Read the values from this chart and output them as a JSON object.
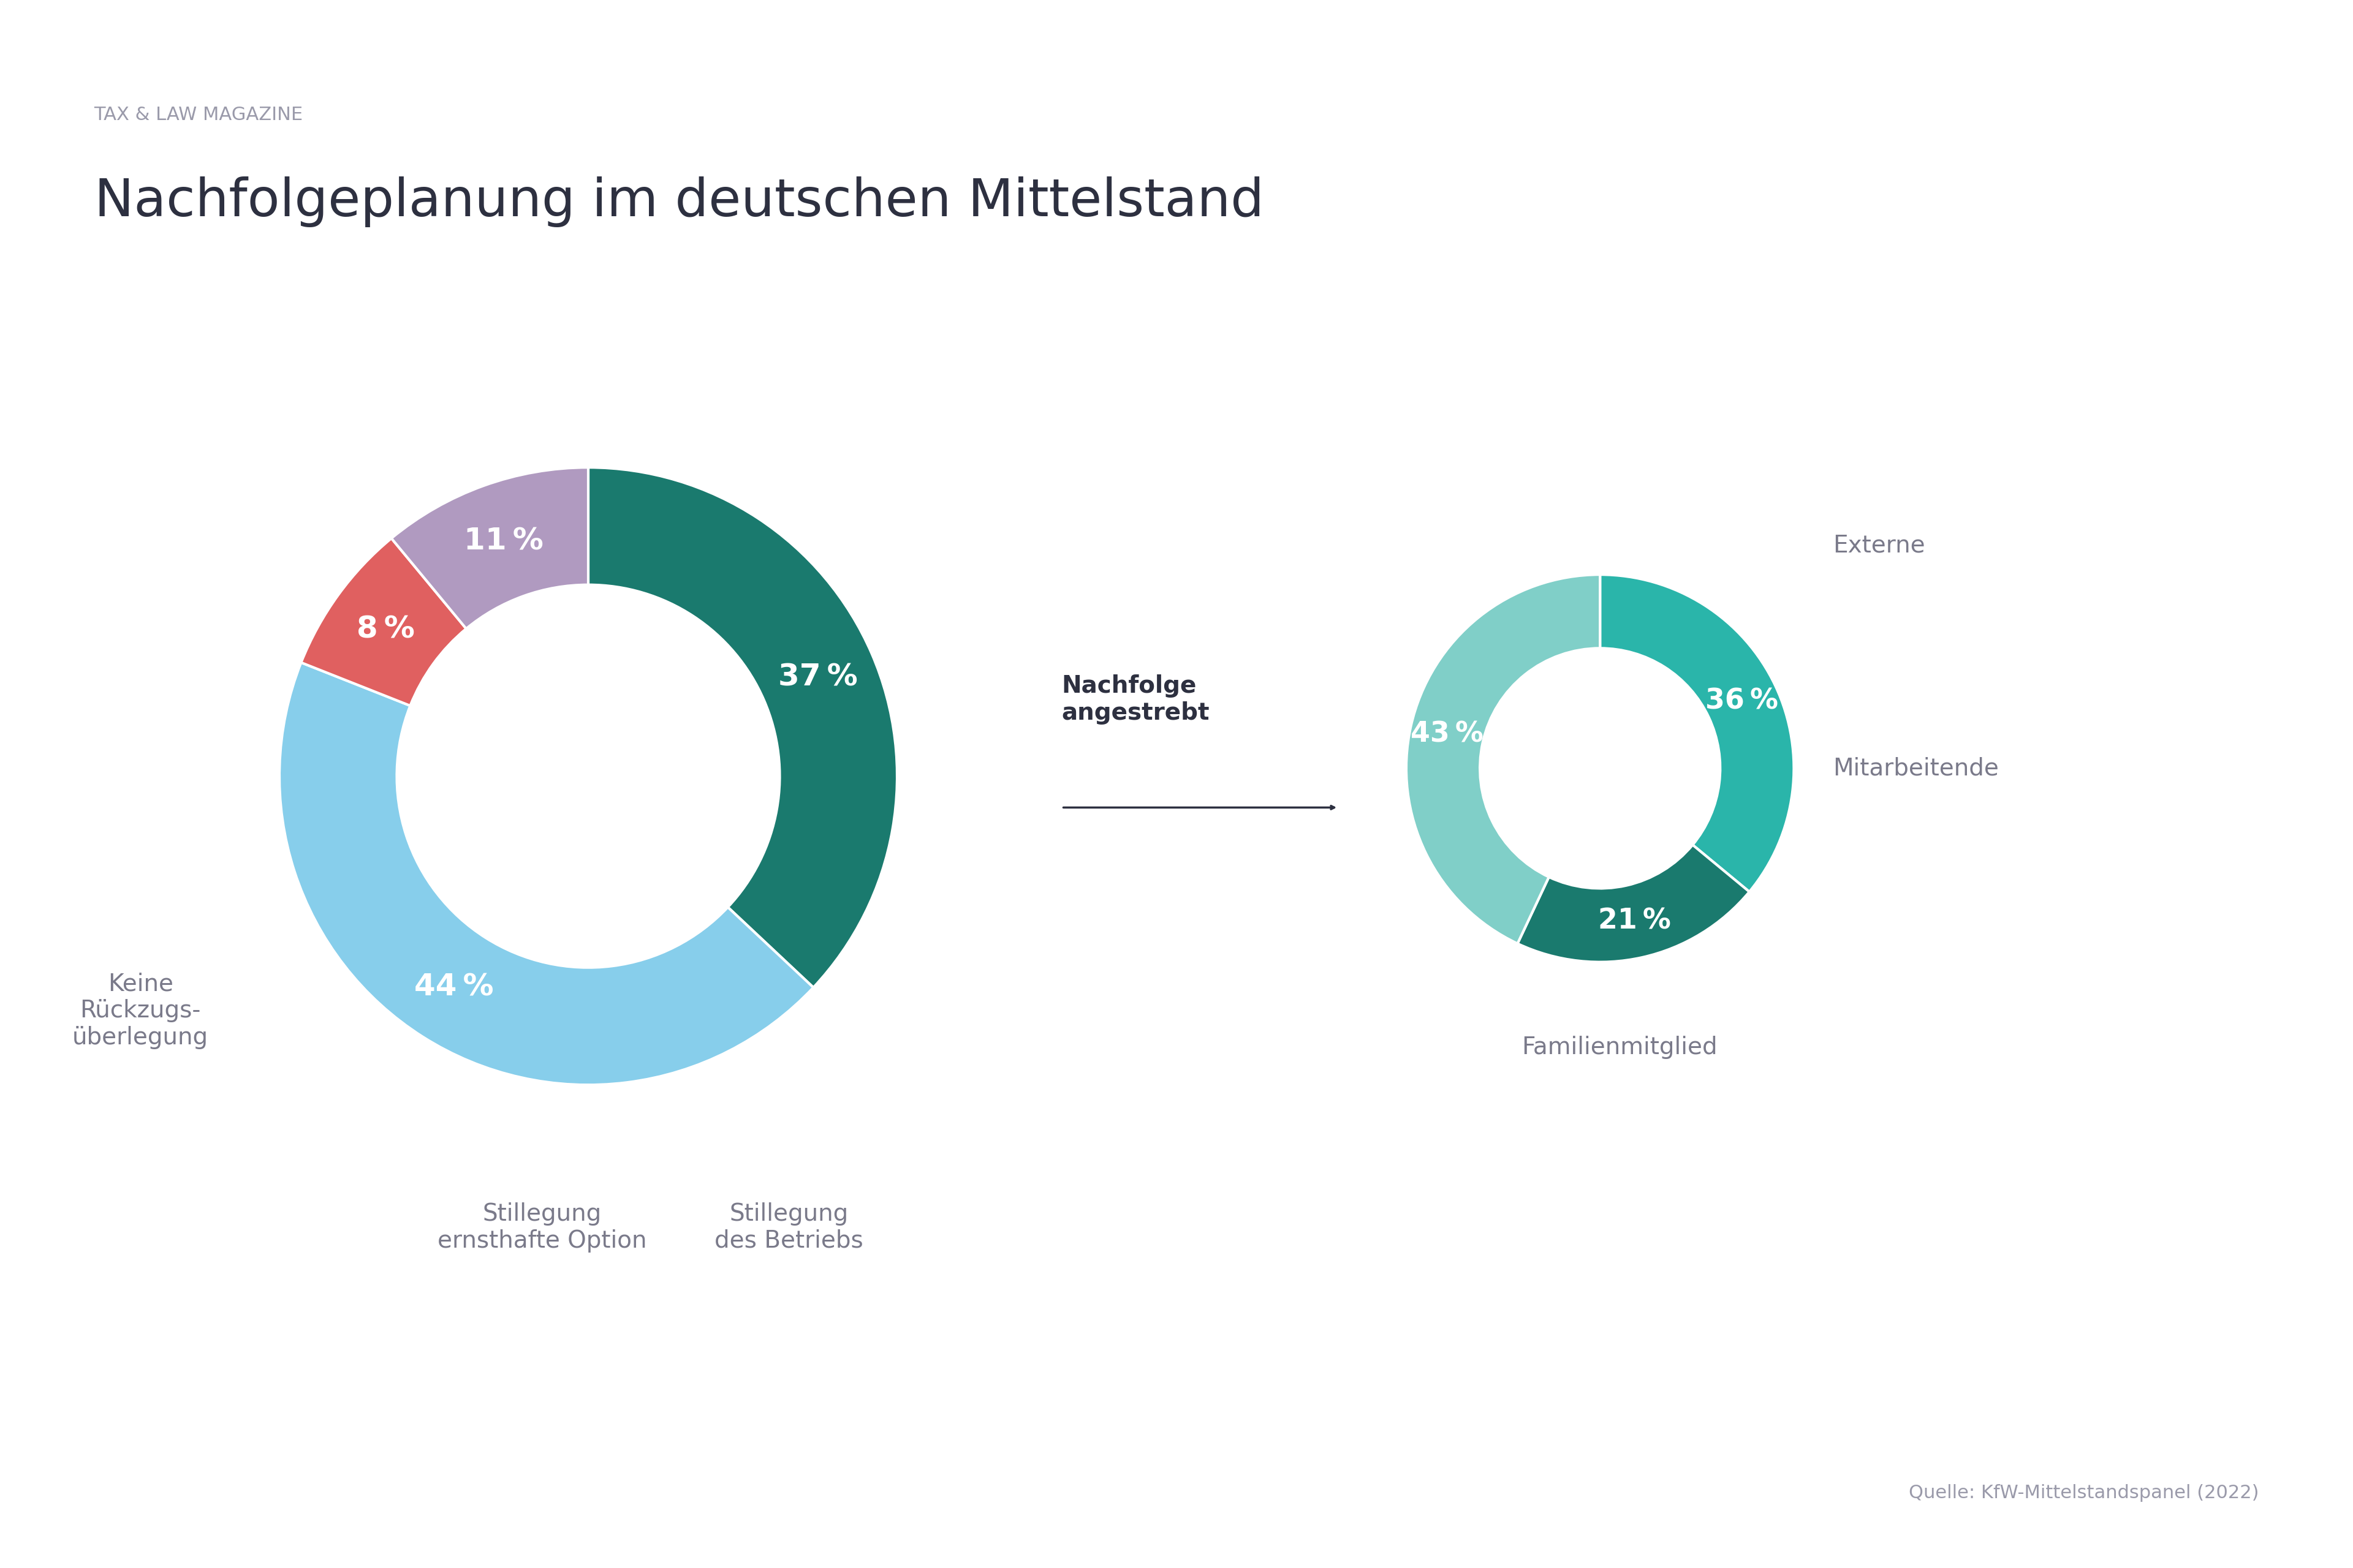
{
  "title": "Nachfolgeplanung im deutschen Mittelstand",
  "subtitle": "TAX & LAW MAGAZINE",
  "source": "Quelle: KfW-Mittelstandspanel (2022)",
  "left_chart": {
    "values": [
      37,
      44,
      8,
      11
    ],
    "colors": [
      "#1a7a6e",
      "#87ceeb",
      "#e06060",
      "#b09ac0"
    ],
    "labels": [
      "37 %",
      "44 %",
      "8 %",
      "11 %"
    ],
    "outer_labels": [
      "",
      "Keine\nRückzugs-\nüberlegung",
      "Stillegung\nernsthafte Option",
      "Stillegung\ndes Betriebs"
    ],
    "startangle": 90,
    "wedge_order": [
      "nachfolge",
      "keine",
      "stillegung_e",
      "stillegung_d"
    ]
  },
  "right_chart": {
    "values": [
      36,
      21,
      43
    ],
    "colors": [
      "#2ab5aa",
      "#1a7a6e",
      "#80cfc8"
    ],
    "labels": [
      "36 %",
      "21 %",
      "43 %"
    ],
    "outer_labels": [
      "Externe",
      "Mitarbeitende",
      "Familienmitglied"
    ],
    "startangle": 90
  },
  "arrow_label": "Nachfolge\nangestrebt",
  "bg_color": "#ffffff",
  "title_color": "#2d3040",
  "label_color": "#7a7a8a",
  "pct_color_white": "#ffffff",
  "subtitle_color": "#9a9aaa"
}
